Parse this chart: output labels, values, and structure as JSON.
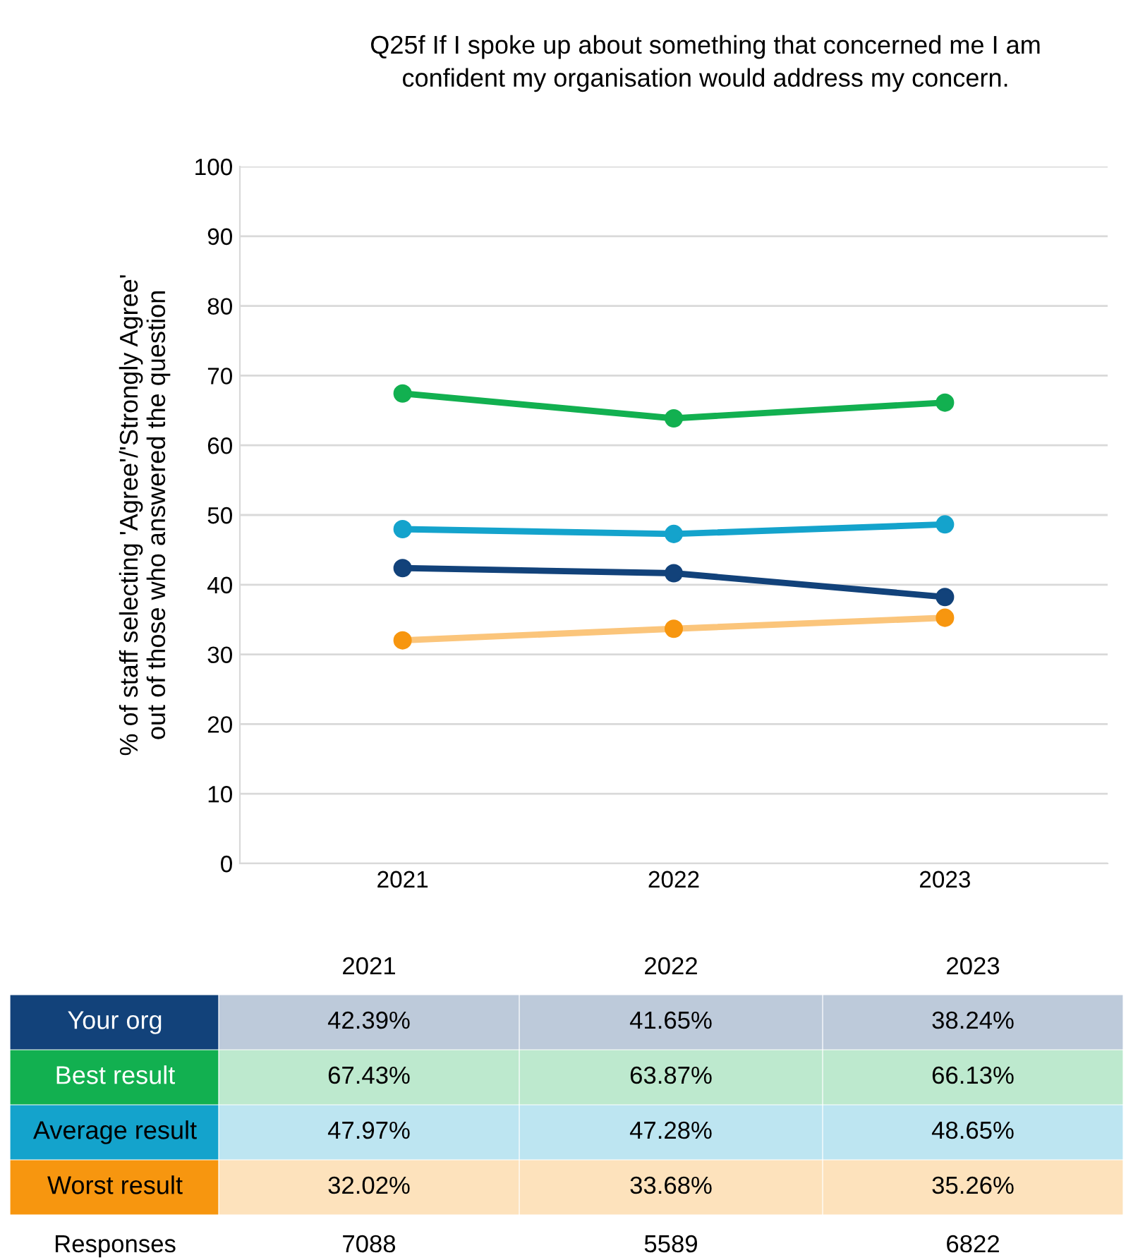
{
  "chart_data": {
    "type": "line",
    "title": "Q25f If I spoke up about something that concerned me I am\nconfident my organisation would address my concern.",
    "ylabel": "% of staff selecting 'Agree'/'Strongly Agree'\nout of those who answered the question",
    "categories": [
      "2021",
      "2022",
      "2023"
    ],
    "ylim": [
      0,
      100
    ],
    "yticks": [
      0,
      10,
      20,
      30,
      40,
      50,
      60,
      70,
      80,
      90,
      100
    ],
    "grid": "y",
    "marker": "circle",
    "line_style": "solid",
    "legend": false,
    "series": [
      {
        "name": "Your org",
        "color": "#12427a",
        "values": [
          42.39,
          41.65,
          38.24
        ],
        "value_labels": [
          "42.39%",
          "41.65%",
          "38.24%"
        ]
      },
      {
        "name": "Best result",
        "color": "#12b050",
        "values": [
          67.43,
          63.87,
          66.13
        ],
        "value_labels": [
          "67.43%",
          "63.87%",
          "66.13%"
        ]
      },
      {
        "name": "Average result",
        "color": "#14a3cc",
        "values": [
          47.97,
          47.28,
          48.65
        ],
        "value_labels": [
          "47.97%",
          "47.28%",
          "48.65%"
        ]
      },
      {
        "name": "Worst result",
        "color": "#f7960f",
        "values": [
          32.02,
          33.68,
          35.26
        ],
        "value_labels": [
          "32.02%",
          "33.68%",
          "35.26%"
        ]
      }
    ],
    "annotations": [
      "Responses",
      "7088",
      "5589",
      "6822"
    ]
  }
}
